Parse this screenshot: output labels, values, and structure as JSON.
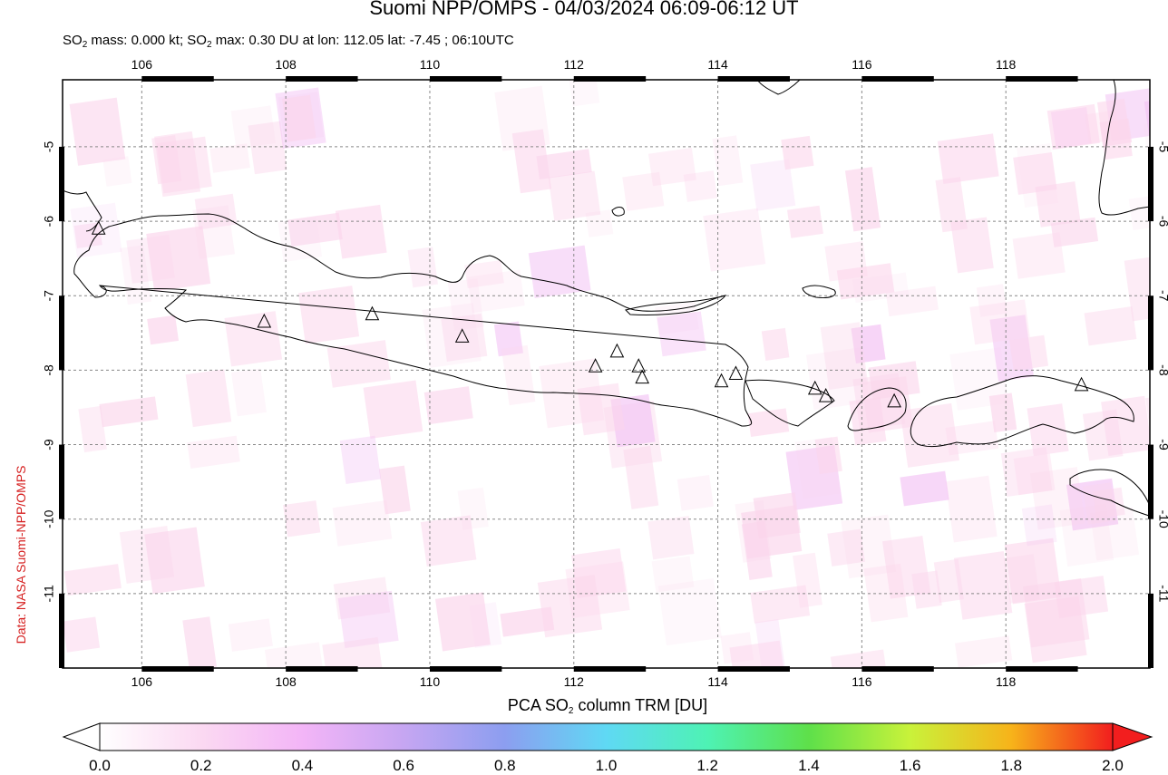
{
  "title": "Suomi NPP/OMPS - 04/03/2024 06:09-06:12 UT",
  "subtitle": {
    "mass_prefix": "SO",
    "mass_sub": "2",
    "mass_text": " mass: 0.000 kt; SO",
    "max_sub": "2",
    "max_text": " max: 0.30 DU at lon: 112.05 lat: -7.45 ; 06:10UTC"
  },
  "credit": "Data: NASA Suomi-NPP/OMPS",
  "map": {
    "lon_range": [
      104.9,
      120.0
    ],
    "lat_range": [
      -12.0,
      -4.1
    ],
    "lon_ticks": [
      "106",
      "108",
      "110",
      "112",
      "114",
      "116",
      "118"
    ],
    "lon_tick_values": [
      106,
      108,
      110,
      112,
      114,
      116,
      118
    ],
    "lat_ticks": [
      "-5",
      "-6",
      "-7",
      "-8",
      "-9",
      "-10",
      "-11"
    ],
    "lat_tick_values": [
      -5,
      -6,
      -7,
      -8,
      -9,
      -10,
      -11
    ],
    "grid": true,
    "volcanoes": [
      {
        "lon": 105.4,
        "lat": -6.1
      },
      {
        "lon": 107.7,
        "lat": -7.35
      },
      {
        "lon": 109.2,
        "lat": -7.25
      },
      {
        "lon": 110.45,
        "lat": -7.55
      },
      {
        "lon": 112.3,
        "lat": -7.95
      },
      {
        "lon": 112.6,
        "lat": -7.75
      },
      {
        "lon": 112.9,
        "lat": -7.95
      },
      {
        "lon": 112.95,
        "lat": -8.1
      },
      {
        "lon": 114.05,
        "lat": -8.15
      },
      {
        "lon": 114.25,
        "lat": -8.05
      },
      {
        "lon": 115.35,
        "lat": -8.25
      },
      {
        "lon": 115.5,
        "lat": -8.35
      },
      {
        "lon": 116.45,
        "lat": -8.42
      },
      {
        "lon": 119.05,
        "lat": -8.2
      }
    ]
  },
  "colorbar": {
    "label_prefix": "PCA SO",
    "label_sub": "2",
    "label_suffix": " column TRM [DU]",
    "ticks": [
      "0.0",
      "0.2",
      "0.4",
      "0.6",
      "0.8",
      "1.0",
      "1.2",
      "1.4",
      "1.6",
      "1.8",
      "2.0"
    ],
    "range": [
      0.0,
      2.0
    ],
    "colors": [
      "#ffffff",
      "#fbd9f2",
      "#f3b5f7",
      "#c6a6f2",
      "#8c9ef0",
      "#5fd9f4",
      "#4ef2b4",
      "#5ee04a",
      "#c9f23a",
      "#f7b31a",
      "#f21e1e"
    ]
  }
}
